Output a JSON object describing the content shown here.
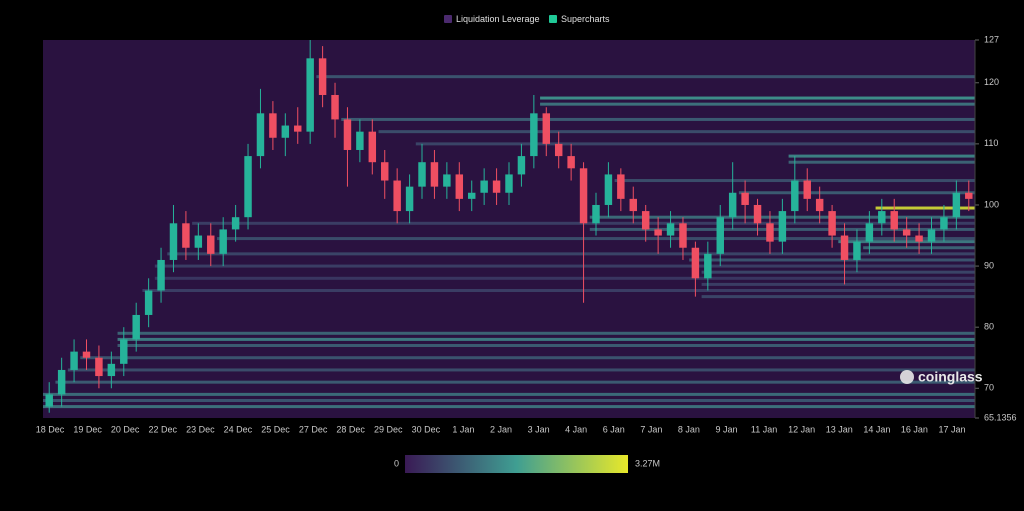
{
  "chart_data": {
    "type": "candlestick-heatmap",
    "series": [
      {
        "name": "Liquidation Leverage",
        "color": "#4b2a6e"
      },
      {
        "name": "Supercharts",
        "color": "#20c997"
      }
    ],
    "up_color": "#26b39a",
    "down_color": "#ef4f62",
    "watermark": "coinglass",
    "categories": [
      "18 Dec",
      "19 Dec",
      "20 Dec",
      "22 Dec",
      "23 Dec",
      "24 Dec",
      "25 Dec",
      "27 Dec",
      "28 Dec",
      "29 Dec",
      "30 Dec",
      "1 Jan",
      "2 Jan",
      "3 Jan",
      "4 Jan",
      "6 Jan",
      "7 Jan",
      "8 Jan",
      "9 Jan",
      "11 Jan",
      "12 Jan",
      "13 Jan",
      "14 Jan",
      "16 Jan",
      "17 Jan"
    ],
    "ylim": [
      65.1356,
      127
    ],
    "yticks": [
      65.1356,
      70,
      80,
      90,
      100,
      110,
      120,
      127
    ],
    "open": [
      67,
      69,
      73,
      76,
      75,
      72,
      74,
      78,
      82,
      86,
      91,
      97,
      93,
      95,
      92,
      96,
      98,
      108,
      115,
      111,
      113,
      112,
      124,
      118,
      114,
      109,
      112,
      107,
      104,
      99,
      103,
      107,
      103,
      105,
      101,
      102,
      104,
      102,
      105,
      108,
      115,
      110,
      108,
      106,
      97,
      100,
      105,
      101,
      99,
      96,
      95,
      97,
      93,
      88,
      92,
      98,
      102,
      100,
      97,
      94,
      99,
      104,
      101,
      99,
      95,
      91,
      94,
      97,
      99,
      96,
      95,
      94,
      96,
      98,
      102
    ],
    "high": [
      71,
      75,
      78,
      78,
      77,
      76,
      80,
      84,
      88,
      93,
      100,
      99,
      97,
      97,
      98,
      100,
      110,
      119,
      117,
      115,
      116,
      127,
      126,
      120,
      116,
      114,
      114,
      109,
      106,
      105,
      110,
      109,
      107,
      107,
      104,
      106,
      106,
      107,
      110,
      118,
      116,
      112,
      110,
      107,
      102,
      107,
      106,
      103,
      100,
      98,
      99,
      98,
      94,
      94,
      100,
      107,
      104,
      101,
      99,
      101,
      108,
      106,
      103,
      100,
      97,
      96,
      99,
      101,
      101,
      98,
      97,
      98,
      100,
      104,
      104
    ],
    "low": [
      66,
      67,
      71,
      73,
      70,
      70,
      72,
      76,
      80,
      84,
      89,
      91,
      91,
      90,
      90,
      94,
      96,
      106,
      109,
      108,
      110,
      110,
      116,
      111,
      103,
      107,
      105,
      101,
      97,
      97,
      101,
      101,
      101,
      99,
      99,
      100,
      100,
      100,
      103,
      106,
      108,
      106,
      104,
      84,
      95,
      98,
      99,
      97,
      94,
      92,
      93,
      91,
      85,
      86,
      90,
      96,
      97,
      95,
      92,
      92,
      97,
      99,
      97,
      93,
      87,
      89,
      92,
      95,
      94,
      93,
      92,
      92,
      94,
      96,
      99
    ],
    "close": [
      69,
      73,
      76,
      75,
      72,
      74,
      78,
      82,
      86,
      91,
      97,
      93,
      95,
      92,
      96,
      98,
      108,
      115,
      111,
      113,
      112,
      124,
      118,
      114,
      109,
      112,
      107,
      104,
      99,
      103,
      107,
      103,
      105,
      101,
      102,
      104,
      102,
      105,
      108,
      115,
      110,
      108,
      106,
      97,
      100,
      105,
      101,
      99,
      96,
      95,
      97,
      93,
      88,
      92,
      98,
      102,
      100,
      97,
      94,
      99,
      104,
      101,
      99,
      95,
      91,
      94,
      97,
      99,
      96,
      95,
      94,
      96,
      98,
      102,
      101
    ],
    "bands": [
      {
        "price": 121,
        "start": 22,
        "value": 0.8
      },
      {
        "price": 117.5,
        "start": 40,
        "value": 1.6
      },
      {
        "price": 116.5,
        "start": 40,
        "value": 1.2
      },
      {
        "price": 114,
        "start": 24,
        "value": 0.9
      },
      {
        "price": 112,
        "start": 27,
        "value": 0.7
      },
      {
        "price": 110,
        "start": 30,
        "value": 0.6
      },
      {
        "price": 108,
        "start": 60,
        "value": 1.4
      },
      {
        "price": 107,
        "start": 60,
        "value": 1.0
      },
      {
        "price": 104,
        "start": 46,
        "value": 0.7
      },
      {
        "price": 102,
        "start": 56,
        "value": 0.9
      },
      {
        "price": 99.5,
        "start": 67,
        "value": 3.1
      },
      {
        "price": 98,
        "start": 44,
        "value": 1.1
      },
      {
        "price": 96,
        "start": 44,
        "value": 0.9
      },
      {
        "price": 94,
        "start": 64,
        "value": 1.3
      },
      {
        "price": 93,
        "start": 66,
        "value": 1.0
      },
      {
        "price": 91,
        "start": 52,
        "value": 0.8
      },
      {
        "price": 89,
        "start": 53,
        "value": 0.6
      },
      {
        "price": 87,
        "start": 53,
        "value": 0.5
      },
      {
        "price": 85,
        "start": 53,
        "value": 0.6
      },
      {
        "price": 97,
        "start": 12,
        "value": 0.5
      },
      {
        "price": 94.5,
        "start": 14,
        "value": 0.7
      },
      {
        "price": 92,
        "start": 10,
        "value": 0.6
      },
      {
        "price": 90,
        "start": 9,
        "value": 0.5
      },
      {
        "price": 88,
        "start": 9,
        "value": 0.4
      },
      {
        "price": 86,
        "start": 8,
        "value": 0.5
      },
      {
        "price": 79,
        "start": 6,
        "value": 1.0
      },
      {
        "price": 78,
        "start": 6,
        "value": 1.3
      },
      {
        "price": 77,
        "start": 6,
        "value": 0.9
      },
      {
        "price": 75,
        "start": 3,
        "value": 0.8
      },
      {
        "price": 73,
        "start": 2,
        "value": 0.7
      },
      {
        "price": 71,
        "start": 1,
        "value": 0.9
      },
      {
        "price": 69,
        "start": 0,
        "value": 1.1
      },
      {
        "price": 68,
        "start": 0,
        "value": 0.8
      },
      {
        "price": 67,
        "start": 0,
        "value": 1.2
      }
    ],
    "colorbar_ticks": [
      0,
      {
        "value": 3.27,
        "label": "3.27M"
      }
    ],
    "colorbar_colors": [
      "#3a1a55",
      "#3f9e92",
      "#e8e82a"
    ]
  }
}
